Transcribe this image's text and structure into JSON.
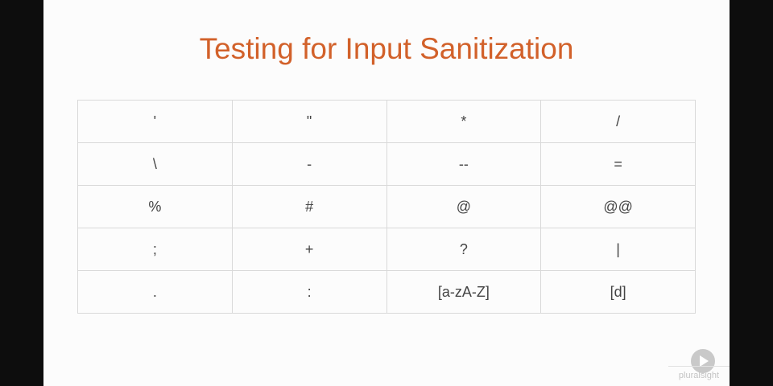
{
  "slide": {
    "title": "Testing for Input Sanitization",
    "rows": [
      [
        "'",
        "\"",
        "*",
        "/"
      ],
      [
        "\\",
        "-",
        "--",
        "="
      ],
      [
        "%",
        "#",
        "@",
        "@@"
      ],
      [
        ";",
        "+",
        "?",
        "|"
      ],
      [
        ".",
        ":",
        "[a-zA-Z]",
        "[d]"
      ]
    ],
    "colors": {
      "title": "#d2612a",
      "cell_text": "#444444",
      "grid_line": "#d9d9d9",
      "background": "#fcfcfc"
    }
  },
  "branding": {
    "logo_text": "pluralsight",
    "play_icon": "play-icon"
  }
}
